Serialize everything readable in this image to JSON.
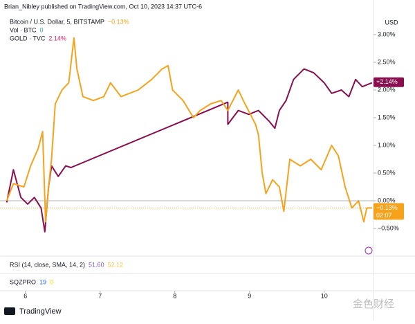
{
  "chart_data": {
    "type": "line",
    "title": "Brian_Nibley published on TradingView.com, Oct 10, 2023 14:37 UTC-6",
    "currency_label": "USD",
    "xlim": [
      5.66,
      10.66
    ],
    "xticks": [
      6,
      7,
      8,
      9,
      10
    ],
    "ylim": [
      -1.0,
      3.35
    ],
    "yticks": [
      {
        "value": 3.0,
        "label": "3.00%"
      },
      {
        "value": 2.5,
        "label": "2.50%"
      },
      {
        "value": 2.0,
        "label": "2.00%"
      },
      {
        "value": 1.5,
        "label": "1.50%"
      },
      {
        "value": 1.0,
        "label": "1.00%"
      },
      {
        "value": 0.5,
        "label": "0.50%"
      },
      {
        "value": 0,
        "label": "0.00%"
      },
      {
        "value": -0.5,
        "label": "−0.50%"
      }
    ],
    "series": [
      {
        "name": "Bitcoin / U.S. Dollar, 5, BITSTAMP",
        "color": "#f7a21b",
        "change": "−0.13%",
        "last_value": -0.13,
        "last_label": "−0.13%",
        "countdown": "02:07",
        "x": [
          5.75,
          5.84,
          5.98,
          6.07,
          6.17,
          6.23,
          6.27,
          6.31,
          6.35,
          6.4,
          6.49,
          6.58,
          6.65,
          6.69,
          6.77,
          6.91,
          7.05,
          7.14,
          7.28,
          7.51,
          7.69,
          7.83,
          7.91,
          7.97,
          8.11,
          8.25,
          8.34,
          8.48,
          8.62,
          8.71,
          8.85,
          8.94,
          9.08,
          9.12,
          9.17,
          9.22,
          9.31,
          9.4,
          9.46,
          9.54,
          9.68,
          9.82,
          9.96,
          10.1,
          10.19,
          10.28,
          10.37,
          10.46,
          10.53,
          10.57,
          10.64
        ],
        "values": [
          0,
          0.31,
          0.25,
          0.63,
          0.94,
          1.25,
          -0.38,
          0.25,
          0.75,
          1.75,
          2.0,
          2.13,
          2.94,
          2.38,
          1.88,
          1.81,
          1.88,
          2.13,
          1.88,
          2.0,
          2.19,
          2.38,
          2.44,
          2.0,
          1.81,
          1.5,
          1.63,
          1.75,
          1.81,
          1.63,
          2.0,
          1.75,
          1.38,
          1.19,
          0.5,
          0.13,
          0.38,
          0.25,
          -0.19,
          0.75,
          0.63,
          0.75,
          0.56,
          1.0,
          0.81,
          0.25,
          -0.13,
          0,
          -0.38,
          -0.13,
          -0.13
        ]
      },
      {
        "name": "GOLD · TVC",
        "color": "#880e4f",
        "change": "2.14%",
        "last_value": 2.14,
        "last_label": "+2.14%",
        "x": [
          5.75,
          5.84,
          5.94,
          6.03,
          6.12,
          6.21,
          6.26,
          6.31,
          6.35,
          6.44,
          6.54,
          6.61,
          8.71,
          8.71,
          8.85,
          8.99,
          9.12,
          9.26,
          9.34,
          9.4,
          9.49,
          9.59,
          9.73,
          9.86,
          10.0,
          10.1,
          10.23,
          10.33,
          10.42,
          10.51,
          10.64
        ],
        "values": [
          -0.03,
          0.56,
          0.06,
          -0.06,
          0.06,
          -0.13,
          -0.56,
          0.25,
          0.63,
          0.44,
          0.63,
          0.6,
          1.78,
          1.38,
          1.63,
          1.56,
          1.63,
          1.44,
          1.31,
          1.63,
          1.81,
          2.19,
          2.38,
          2.31,
          2.13,
          1.94,
          2.0,
          1.88,
          2.19,
          2.06,
          2.13
        ]
      }
    ],
    "volume": {
      "name": "Vol · BTC",
      "value": "0"
    },
    "indicators": [
      {
        "name": "RSI (14, close, SMA, 14, 2)",
        "values": [
          "51.60",
          "52.12"
        ],
        "colors": [
          "#7e57c2",
          "#f7c948"
        ]
      },
      {
        "name": "SQZPRO",
        "values": [
          "19",
          "0"
        ],
        "colors": [
          "#2962ff",
          "#f7e000"
        ]
      }
    ],
    "brand": "TradingView",
    "watermark": "金色财经"
  }
}
